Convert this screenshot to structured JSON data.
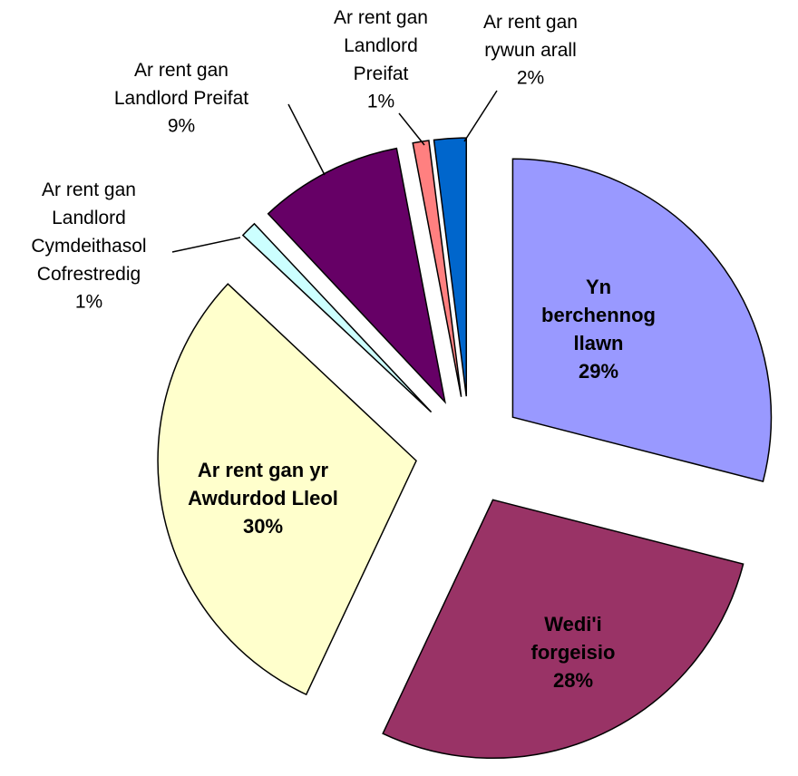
{
  "chart_data": {
    "type": "pie",
    "categories": [
      "Yn\nberchennog\nllawn",
      "Wedi'i\nforgeisio",
      "Ar rent gan yr\nAwdurdod Lleol",
      "Ar rent gan\nLandlord\nCymdeithasol\nCofrestredig",
      "Ar rent gan\nLandlord Preifat",
      "Ar rent gan\nLandlord\nPreifat",
      "Ar rent gan\nrywun arall"
    ],
    "values": [
      29,
      28,
      30,
      1,
      9,
      1,
      2
    ],
    "value_labels": [
      "29%",
      "28%",
      "30%",
      "1%",
      "9%",
      "1%",
      "2%"
    ],
    "colors": [
      "#9999ff",
      "#993366",
      "#ffffcc",
      "#ccffff",
      "#660066",
      "#ff8080",
      "#0066cc"
    ]
  }
}
